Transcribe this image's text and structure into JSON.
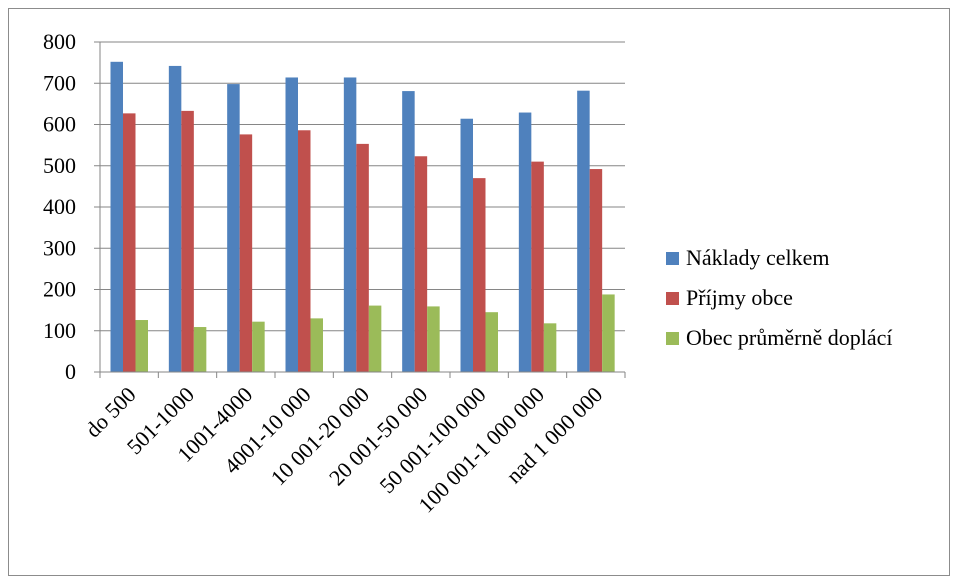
{
  "chart_data": {
    "type": "bar",
    "categories": [
      "do 500",
      "501-1000",
      "1001-4000",
      "4001-10 000",
      "10 001-20 000",
      "20 001-50 000",
      "50 001-100 000",
      "100 001-1 000 000",
      "nad 1 000 000"
    ],
    "series": [
      {
        "name": "Náklady celkem",
        "color": "#4F81BD",
        "values": [
          752,
          742,
          698,
          714,
          714,
          681,
          614,
          629,
          682
        ]
      },
      {
        "name": "Příjmy obce",
        "color": "#C0504D",
        "values": [
          627,
          633,
          576,
          586,
          553,
          523,
          470,
          510,
          492
        ]
      },
      {
        "name": "Obec průměrně doplácí",
        "color": "#9BBB59",
        "values": [
          126,
          109,
          122,
          130,
          161,
          159,
          145,
          118,
          188
        ]
      }
    ],
    "ylim": [
      0,
      800
    ],
    "yticks": [
      0,
      100,
      200,
      300,
      400,
      500,
      600,
      700,
      800
    ],
    "grid": true,
    "legend_position": "right"
  }
}
